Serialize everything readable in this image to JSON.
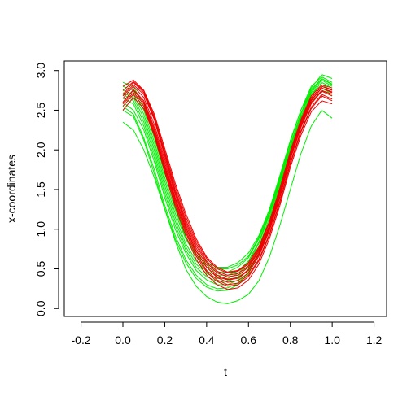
{
  "chart_data": {
    "type": "line",
    "xlabel": "t",
    "ylabel": "x-coordinates",
    "xlim": [
      -0.28,
      1.26
    ],
    "ylim": [
      -0.1,
      3.12
    ],
    "x_ticks": [
      -0.2,
      0.0,
      0.2,
      0.4,
      0.6,
      0.8,
      1.0,
      1.2
    ],
    "x_tick_labels": [
      "-0.2",
      "0.0",
      "0.2",
      "0.4",
      "0.6",
      "0.8",
      "1.0",
      "1.2"
    ],
    "y_ticks": [
      0.0,
      0.5,
      1.0,
      1.5,
      2.0,
      2.5,
      3.0
    ],
    "y_tick_labels": [
      "0.0",
      "0.5",
      "1.0",
      "1.5",
      "2.0",
      "2.5",
      "3.0"
    ],
    "grid": false,
    "legend": "none",
    "x": [
      0.0,
      0.05,
      0.1,
      0.15,
      0.2,
      0.25,
      0.3,
      0.35,
      0.4,
      0.45,
      0.5,
      0.55,
      0.6,
      0.65,
      0.7,
      0.75,
      0.8,
      0.85,
      0.9,
      0.95,
      1.0
    ],
    "series": [
      {
        "color": "#00ee00",
        "values": [
          2.35,
          2.25,
          2.0,
          1.65,
          1.25,
          0.85,
          0.5,
          0.28,
          0.15,
          0.08,
          0.06,
          0.1,
          0.18,
          0.35,
          0.65,
          1.05,
          1.5,
          1.95,
          2.3,
          2.5,
          2.4
        ]
      },
      {
        "color": "#00ee00",
        "values": [
          2.85,
          2.8,
          2.55,
          2.15,
          1.7,
          1.3,
          0.95,
          0.72,
          0.58,
          0.52,
          0.52,
          0.58,
          0.7,
          0.92,
          1.25,
          1.65,
          2.05,
          2.45,
          2.78,
          2.95,
          2.9
        ]
      },
      {
        "color": "#00ee00",
        "values": [
          2.6,
          2.5,
          2.25,
          1.85,
          1.4,
          1.0,
          0.7,
          0.48,
          0.36,
          0.3,
          0.3,
          0.36,
          0.5,
          0.75,
          1.1,
          1.55,
          2.0,
          2.4,
          2.7,
          2.82,
          2.75
        ]
      },
      {
        "color": "#00ee00",
        "values": [
          2.7,
          2.62,
          2.35,
          1.95,
          1.5,
          1.1,
          0.78,
          0.56,
          0.44,
          0.38,
          0.38,
          0.44,
          0.58,
          0.82,
          1.18,
          1.6,
          2.05,
          2.45,
          2.72,
          2.88,
          2.8
        ]
      },
      {
        "color": "#00ee00",
        "values": [
          2.55,
          2.45,
          2.15,
          1.75,
          1.3,
          0.92,
          0.62,
          0.42,
          0.3,
          0.25,
          0.26,
          0.32,
          0.46,
          0.7,
          1.05,
          1.5,
          1.95,
          2.35,
          2.62,
          2.78,
          2.7
        ]
      },
      {
        "color": "#00ee00",
        "values": [
          2.75,
          2.7,
          2.45,
          2.05,
          1.6,
          1.2,
          0.88,
          0.66,
          0.52,
          0.46,
          0.46,
          0.52,
          0.64,
          0.88,
          1.22,
          1.65,
          2.1,
          2.5,
          2.8,
          2.92,
          2.85
        ]
      },
      {
        "color": "#00ee00",
        "values": [
          2.65,
          2.58,
          2.3,
          1.9,
          1.45,
          1.05,
          0.74,
          0.52,
          0.4,
          0.34,
          0.34,
          0.4,
          0.54,
          0.78,
          1.14,
          1.58,
          2.02,
          2.42,
          2.7,
          2.85,
          2.78
        ]
      },
      {
        "color": "#00ee00",
        "values": [
          2.8,
          2.75,
          2.5,
          2.1,
          1.65,
          1.25,
          0.9,
          0.68,
          0.55,
          0.5,
          0.5,
          0.55,
          0.66,
          0.9,
          1.25,
          1.68,
          2.12,
          2.5,
          2.76,
          2.9,
          2.82
        ]
      },
      {
        "color": "#00ee00",
        "values": [
          2.5,
          2.42,
          2.12,
          1.7,
          1.26,
          0.88,
          0.58,
          0.38,
          0.27,
          0.22,
          0.23,
          0.3,
          0.44,
          0.68,
          1.02,
          1.46,
          1.9,
          2.3,
          2.6,
          2.74,
          2.68
        ]
      },
      {
        "color": "#00ee00",
        "values": [
          2.72,
          2.66,
          2.4,
          2.0,
          1.55,
          1.15,
          0.82,
          0.6,
          0.47,
          0.42,
          0.42,
          0.47,
          0.6,
          0.84,
          1.2,
          1.62,
          2.06,
          2.46,
          2.74,
          2.9,
          2.83
        ]
      },
      {
        "color": "#ee0000",
        "values": [
          2.6,
          2.75,
          2.6,
          2.25,
          1.8,
          1.38,
          1.02,
          0.72,
          0.52,
          0.4,
          0.36,
          0.38,
          0.48,
          0.68,
          1.0,
          1.42,
          1.9,
          2.3,
          2.6,
          2.75,
          2.7
        ]
      },
      {
        "color": "#ee0000",
        "values": [
          2.7,
          2.85,
          2.72,
          2.4,
          1.95,
          1.5,
          1.12,
          0.82,
          0.6,
          0.47,
          0.42,
          0.44,
          0.54,
          0.74,
          1.05,
          1.48,
          1.95,
          2.35,
          2.65,
          2.8,
          2.75
        ]
      },
      {
        "color": "#ee0000",
        "values": [
          2.55,
          2.7,
          2.55,
          2.2,
          1.75,
          1.32,
          0.96,
          0.66,
          0.46,
          0.34,
          0.28,
          0.3,
          0.4,
          0.6,
          0.92,
          1.34,
          1.82,
          2.22,
          2.52,
          2.68,
          2.62
        ]
      },
      {
        "color": "#ee0000",
        "values": [
          2.8,
          2.88,
          2.75,
          2.45,
          2.02,
          1.58,
          1.2,
          0.88,
          0.65,
          0.52,
          0.46,
          0.48,
          0.58,
          0.78,
          1.1,
          1.52,
          1.98,
          2.38,
          2.68,
          2.82,
          2.78
        ]
      },
      {
        "color": "#ee0000",
        "values": [
          2.65,
          2.8,
          2.66,
          2.32,
          1.88,
          1.44,
          1.06,
          0.76,
          0.55,
          0.42,
          0.37,
          0.39,
          0.49,
          0.7,
          1.02,
          1.45,
          1.92,
          2.32,
          2.62,
          2.78,
          2.72
        ]
      },
      {
        "color": "#ee0000",
        "values": [
          2.5,
          2.66,
          2.52,
          2.18,
          1.72,
          1.28,
          0.92,
          0.62,
          0.42,
          0.3,
          0.24,
          0.26,
          0.36,
          0.56,
          0.88,
          1.3,
          1.78,
          2.18,
          2.48,
          2.62,
          2.58
        ]
      },
      {
        "color": "#ee0000",
        "values": [
          2.75,
          2.86,
          2.74,
          2.42,
          1.98,
          1.54,
          1.16,
          0.85,
          0.63,
          0.5,
          0.45,
          0.47,
          0.56,
          0.76,
          1.08,
          1.5,
          1.96,
          2.36,
          2.66,
          2.8,
          2.76
        ]
      },
      {
        "color": "#ee0000",
        "values": [
          2.6,
          2.76,
          2.62,
          2.28,
          1.84,
          1.4,
          1.03,
          0.73,
          0.52,
          0.39,
          0.33,
          0.35,
          0.45,
          0.66,
          0.98,
          1.4,
          1.88,
          2.28,
          2.58,
          2.74,
          2.68
        ]
      },
      {
        "color": "#ee0000",
        "values": [
          2.68,
          2.82,
          2.7,
          2.38,
          1.92,
          1.47,
          1.09,
          0.79,
          0.58,
          0.45,
          0.4,
          0.42,
          0.52,
          0.72,
          1.04,
          1.46,
          1.93,
          2.33,
          2.63,
          2.78,
          2.73
        ]
      },
      {
        "color": "#ee0000",
        "values": [
          2.58,
          2.72,
          2.58,
          2.22,
          1.78,
          1.35,
          0.99,
          0.69,
          0.48,
          0.36,
          0.3,
          0.32,
          0.42,
          0.62,
          0.94,
          1.36,
          1.84,
          2.24,
          2.54,
          2.7,
          2.64
        ]
      }
    ]
  }
}
